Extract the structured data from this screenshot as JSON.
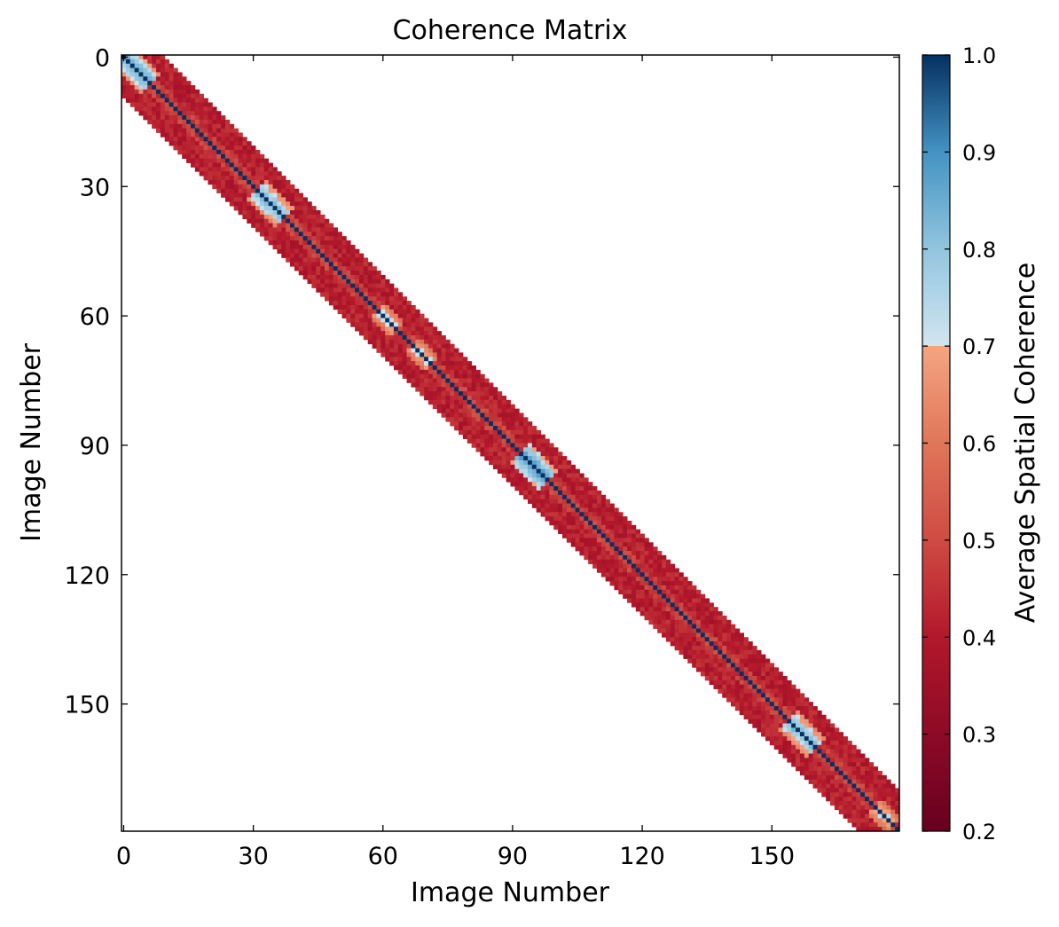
{
  "chart_data": {
    "type": "heatmap",
    "title": "Coherence Matrix",
    "xlabel": "Image Number",
    "ylabel": "Image Number",
    "matrix_size": 180,
    "band_halfwidth": 9,
    "x_ticks": [
      0,
      30,
      60,
      90,
      120,
      150
    ],
    "y_ticks": [
      0,
      30,
      60,
      90,
      120,
      150
    ],
    "x_tick_labels": [
      "0",
      "30",
      "60",
      "90",
      "120",
      "150"
    ],
    "y_tick_labels": [
      "0",
      "30",
      "60",
      "90",
      "120",
      "150"
    ],
    "diagonal_value": 1.0,
    "background": "white (no data off the band)",
    "high_coherence_clusters": [
      {
        "center": 3,
        "radius": 3,
        "value": 0.85
      },
      {
        "center": 34,
        "radius": 3,
        "value": 0.82
      },
      {
        "center": 61,
        "radius": 2,
        "value": 0.72
      },
      {
        "center": 69,
        "radius": 2,
        "value": 0.72
      },
      {
        "center": 95,
        "radius": 3,
        "value": 0.88
      },
      {
        "center": 157,
        "radius": 3,
        "value": 0.82
      },
      {
        "center": 176,
        "radius": 2,
        "value": 0.72
      }
    ],
    "colorbar": {
      "label": "Average Spatial Coherence",
      "min": 0.2,
      "max": 1.0,
      "ticks": [
        0.2,
        0.3,
        0.4,
        0.5,
        0.6,
        0.7,
        0.8,
        0.9,
        1.0
      ],
      "tick_labels": [
        "0.2",
        "0.3",
        "0.4",
        "0.5",
        "0.6",
        "0.7",
        "0.8",
        "0.9",
        "1.0"
      ],
      "stops": [
        {
          "value": 0.2,
          "color": "#67001f"
        },
        {
          "value": 0.3,
          "color": "#8d0a26"
        },
        {
          "value": 0.4,
          "color": "#b2182b"
        },
        {
          "value": 0.5,
          "color": "#cf4b43"
        },
        {
          "value": 0.6,
          "color": "#e07659"
        },
        {
          "value": 0.7,
          "color": "#f4a582"
        },
        {
          "value": 0.7001,
          "color": "#d1e5f0"
        },
        {
          "value": 0.8,
          "color": "#92c5de"
        },
        {
          "value": 0.9,
          "color": "#4393c3"
        },
        {
          "value": 1.0,
          "color": "#053061"
        }
      ]
    }
  }
}
